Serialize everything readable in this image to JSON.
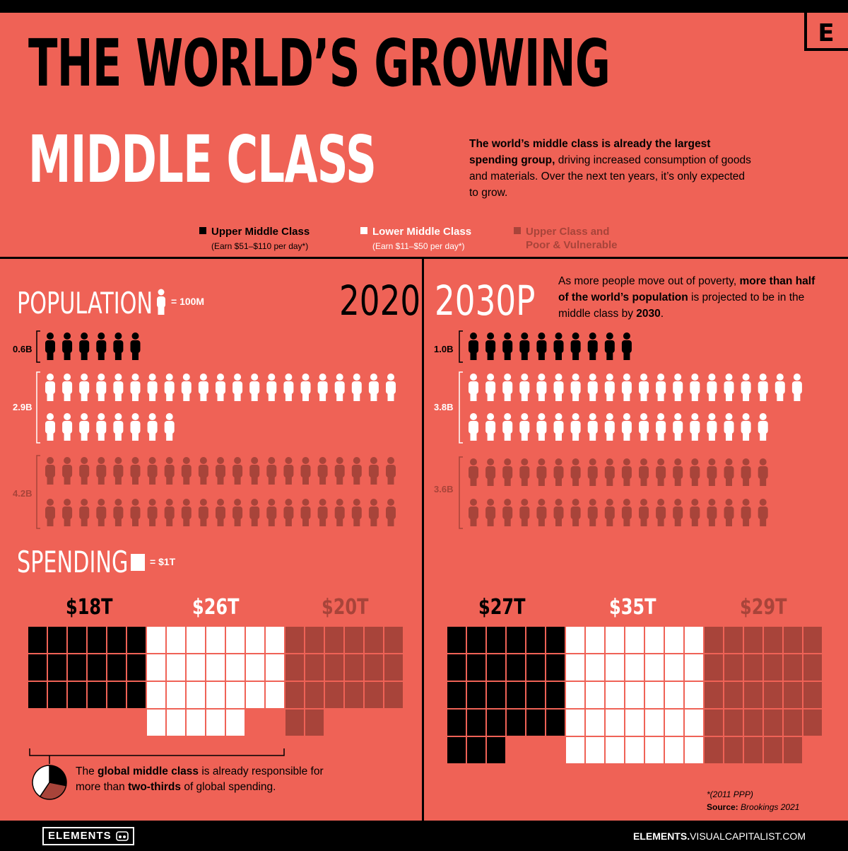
{
  "header": {
    "title_line1": "THE WORLD’S GROWING",
    "title_line2": "MIDDLE CLASS",
    "logo_letter": "E",
    "intro_bold": "The world’s middle class is already the largest spending group,",
    "intro_rest": " driving increased consumption of goods and materials. Over the next ten years, it’s only expected to grow."
  },
  "legend": {
    "upper_label": "Upper Middle Class",
    "upper_sub": "(Earn $51–$110 per day*)",
    "lower_label": "Lower Middle Class",
    "lower_sub": "(Earn $11–$50 per day*)",
    "other_label_line1": "Upper Class and",
    "other_label_line2": "Poor & Vulnerable"
  },
  "colors": {
    "background": "#ef6256",
    "upper": "#000000",
    "lower": "#ffffff",
    "other": "#a8443a"
  },
  "population": {
    "heading": "POPULATION",
    "unit_label": "= 100M",
    "unit_icon": "person-icon"
  },
  "spending": {
    "heading": "SPENDING",
    "unit_label": "= $1T",
    "unit_icon": "square-icon"
  },
  "years": {
    "y2020": "2020",
    "y2030": "2030P",
    "note_pre": "As more people move out of poverty, ",
    "note_bold": "more than half of the world’s population",
    "note_mid": " is projected to be in the middle class by ",
    "note_year": "2030",
    "note_end": "."
  },
  "callout": {
    "t1": "The ",
    "b1": "global middle class",
    "t2": " is already responsible for more than ",
    "b2": "two-thirds",
    "t3": " of global spending."
  },
  "footnote": {
    "ppp": "*(2011 PPP)",
    "source_label": "Source:",
    "source_text": " Brookings 2021"
  },
  "footer": {
    "brand": "ELEMENTS",
    "url_bold": "ELEMENTS.",
    "url_rest": "VISUALCAPITALIST.COM"
  },
  "chart_data": [
    {
      "type": "pictogram",
      "title": "2020",
      "unit": "100M people per icon",
      "categories": [
        "Upper Middle Class",
        "Lower Middle Class",
        "Upper Class and Poor & Vulnerable"
      ],
      "labels": [
        "0.6B",
        "2.9B",
        "4.2B"
      ],
      "values": [
        0.6,
        2.9,
        4.2
      ]
    },
    {
      "type": "pictogram",
      "title": "2030P",
      "unit": "100M people per icon",
      "categories": [
        "Upper Middle Class",
        "Lower Middle Class",
        "Upper Class and Poor & Vulnerable"
      ],
      "labels": [
        "1.0B",
        "3.8B",
        "3.6B"
      ],
      "values": [
        1.0,
        3.8,
        3.6
      ]
    },
    {
      "type": "waffle",
      "title": "2020",
      "unit": "$1T per square",
      "categories": [
        "Upper Middle Class",
        "Lower Middle Class",
        "Upper Class and Poor & Vulnerable"
      ],
      "labels": [
        "$18T",
        "$26T",
        "$20T"
      ],
      "values": [
        18,
        26,
        20
      ]
    },
    {
      "type": "waffle",
      "title": "2030P",
      "unit": "$1T per square",
      "categories": [
        "Upper Middle Class",
        "Lower Middle Class",
        "Upper Class and Poor & Vulnerable"
      ],
      "labels": [
        "$27T",
        "$35T",
        "$29T"
      ],
      "values": [
        27,
        35,
        29
      ]
    },
    {
      "type": "pie",
      "title": "",
      "categories": [
        "Upper Middle Class",
        "Lower Middle Class",
        "Upper Class and Poor & Vulnerable"
      ],
      "values": [
        18,
        26,
        20
      ]
    }
  ]
}
